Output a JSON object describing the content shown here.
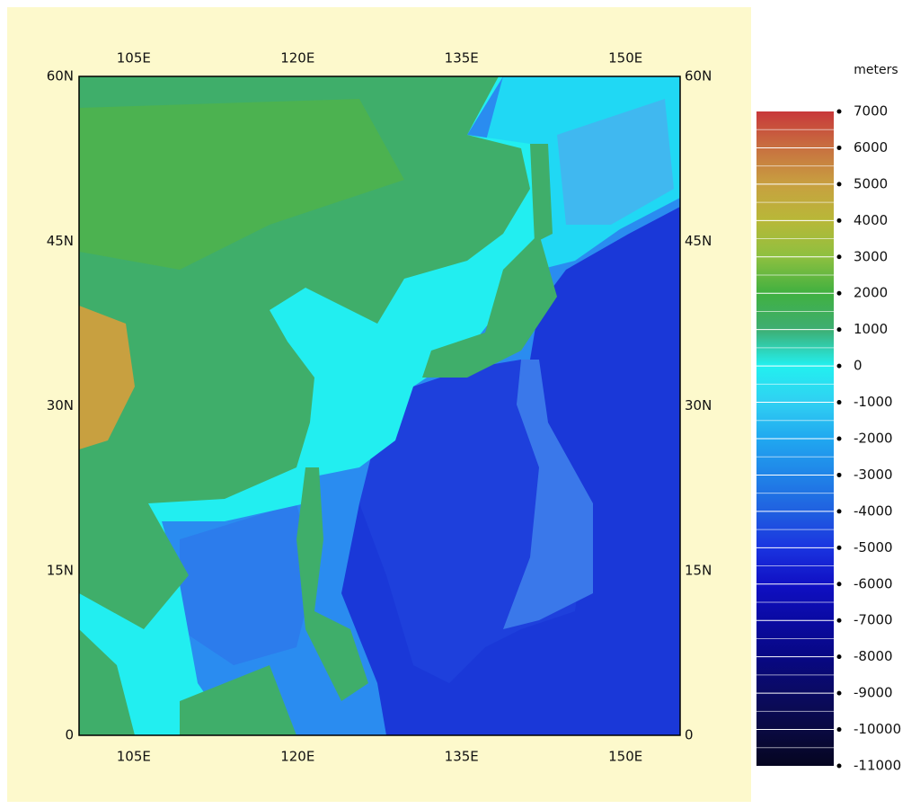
{
  "map": {
    "lonlim": [
      100,
      155
    ],
    "latlim": [
      0,
      60
    ],
    "lon_ticks": [
      {
        "value": 105,
        "label": "105E"
      },
      {
        "value": 120,
        "label": "120E"
      },
      {
        "value": 135,
        "label": "135E"
      },
      {
        "value": 150,
        "label": "150E"
      }
    ],
    "lat_ticks": [
      {
        "value": 60,
        "label": "60N"
      },
      {
        "value": 45,
        "label": "45N"
      },
      {
        "value": 30,
        "label": "30N"
      },
      {
        "value": 15,
        "label": "15N"
      },
      0
    ]
  },
  "colorbar": {
    "unit": "meters",
    "lim": [
      -11000,
      7000
    ],
    "ticks": [
      7000,
      6000,
      5000,
      4000,
      3000,
      2000,
      1000,
      0,
      -1000,
      -2000,
      -3000,
      -4000,
      -5000,
      -6000,
      -7000,
      -8000,
      -9000,
      -10000,
      -11000
    ],
    "colors": [
      "#c8383a",
      "#c87040",
      "#c8a040",
      "#b8b838",
      "#8ec040",
      "#40b040",
      "#3eae72",
      "#22f0f0",
      "#30d0f2",
      "#20a8f0",
      "#2084e8",
      "#2060e0",
      "#1a34e0",
      "#1010c4",
      "#0a0aa2",
      "#080884",
      "#0a0a62",
      "#0a0a42",
      "#050520"
    ]
  }
}
